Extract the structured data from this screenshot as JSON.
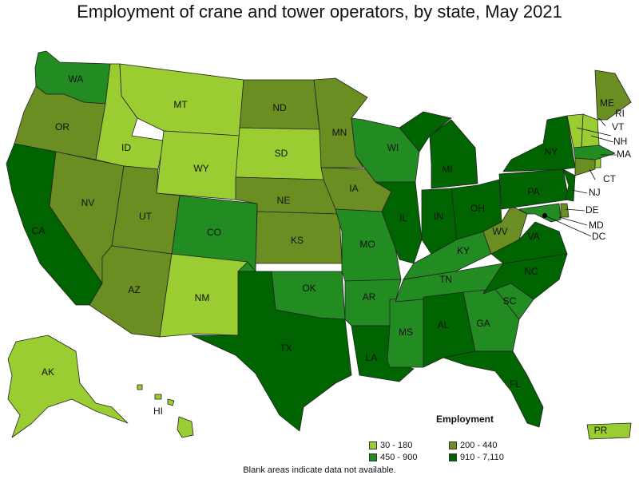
{
  "title": "Employment of crane and tower operators, by state, May 2021",
  "note": "Blank areas indicate data not available.",
  "legend": {
    "title": "Employment",
    "items": [
      {
        "label": "30 - 180",
        "color": "#9ACD32"
      },
      {
        "label": "200 - 440",
        "color": "#6B8E23"
      },
      {
        "label": "450 - 900",
        "color": "#228B22"
      },
      {
        "label": "910 - 7,110",
        "color": "#006400"
      }
    ]
  },
  "states": [
    {
      "abbr": "WA",
      "bin": 2
    },
    {
      "abbr": "OR",
      "bin": 1
    },
    {
      "abbr": "CA",
      "bin": 3
    },
    {
      "abbr": "NV",
      "bin": 1
    },
    {
      "abbr": "ID",
      "bin": 0
    },
    {
      "abbr": "MT",
      "bin": 0
    },
    {
      "abbr": "WY",
      "bin": 0
    },
    {
      "abbr": "UT",
      "bin": 1
    },
    {
      "abbr": "AZ",
      "bin": 1
    },
    {
      "abbr": "CO",
      "bin": 2
    },
    {
      "abbr": "NM",
      "bin": 0
    },
    {
      "abbr": "ND",
      "bin": 1
    },
    {
      "abbr": "SD",
      "bin": 0
    },
    {
      "abbr": "NE",
      "bin": 1
    },
    {
      "abbr": "KS",
      "bin": 1
    },
    {
      "abbr": "OK",
      "bin": 2
    },
    {
      "abbr": "TX",
      "bin": 3
    },
    {
      "abbr": "MN",
      "bin": 1
    },
    {
      "abbr": "IA",
      "bin": 1
    },
    {
      "abbr": "MO",
      "bin": 2
    },
    {
      "abbr": "AR",
      "bin": 2
    },
    {
      "abbr": "LA",
      "bin": 3
    },
    {
      "abbr": "WI",
      "bin": 2
    },
    {
      "abbr": "IL",
      "bin": 3
    },
    {
      "abbr": "MS",
      "bin": 2
    },
    {
      "abbr": "MI",
      "bin": 3
    },
    {
      "abbr": "IN",
      "bin": 3
    },
    {
      "abbr": "KY",
      "bin": 2
    },
    {
      "abbr": "TN",
      "bin": 2
    },
    {
      "abbr": "AL",
      "bin": 3
    },
    {
      "abbr": "OH",
      "bin": 3
    },
    {
      "abbr": "GA",
      "bin": 2
    },
    {
      "abbr": "FL",
      "bin": 3
    },
    {
      "abbr": "SC",
      "bin": 2
    },
    {
      "abbr": "NC",
      "bin": 3
    },
    {
      "abbr": "VA",
      "bin": 3
    },
    {
      "abbr": "WV",
      "bin": 1
    },
    {
      "abbr": "PA",
      "bin": 3
    },
    {
      "abbr": "NY",
      "bin": 3
    },
    {
      "abbr": "ME",
      "bin": 1
    },
    {
      "abbr": "VT",
      "bin": 0
    },
    {
      "abbr": "NH",
      "bin": 0
    },
    {
      "abbr": "MA",
      "bin": 2
    },
    {
      "abbr": "RI",
      "bin": 0
    },
    {
      "abbr": "CT",
      "bin": 1
    },
    {
      "abbr": "NJ",
      "bin": 3
    },
    {
      "abbr": "DE",
      "bin": 1
    },
    {
      "abbr": "MD",
      "bin": 2
    },
    {
      "abbr": "DC",
      "bin": 1
    },
    {
      "abbr": "AK",
      "bin": 0
    },
    {
      "abbr": "HI",
      "bin": 0
    },
    {
      "abbr": "PR",
      "bin": 0
    }
  ]
}
